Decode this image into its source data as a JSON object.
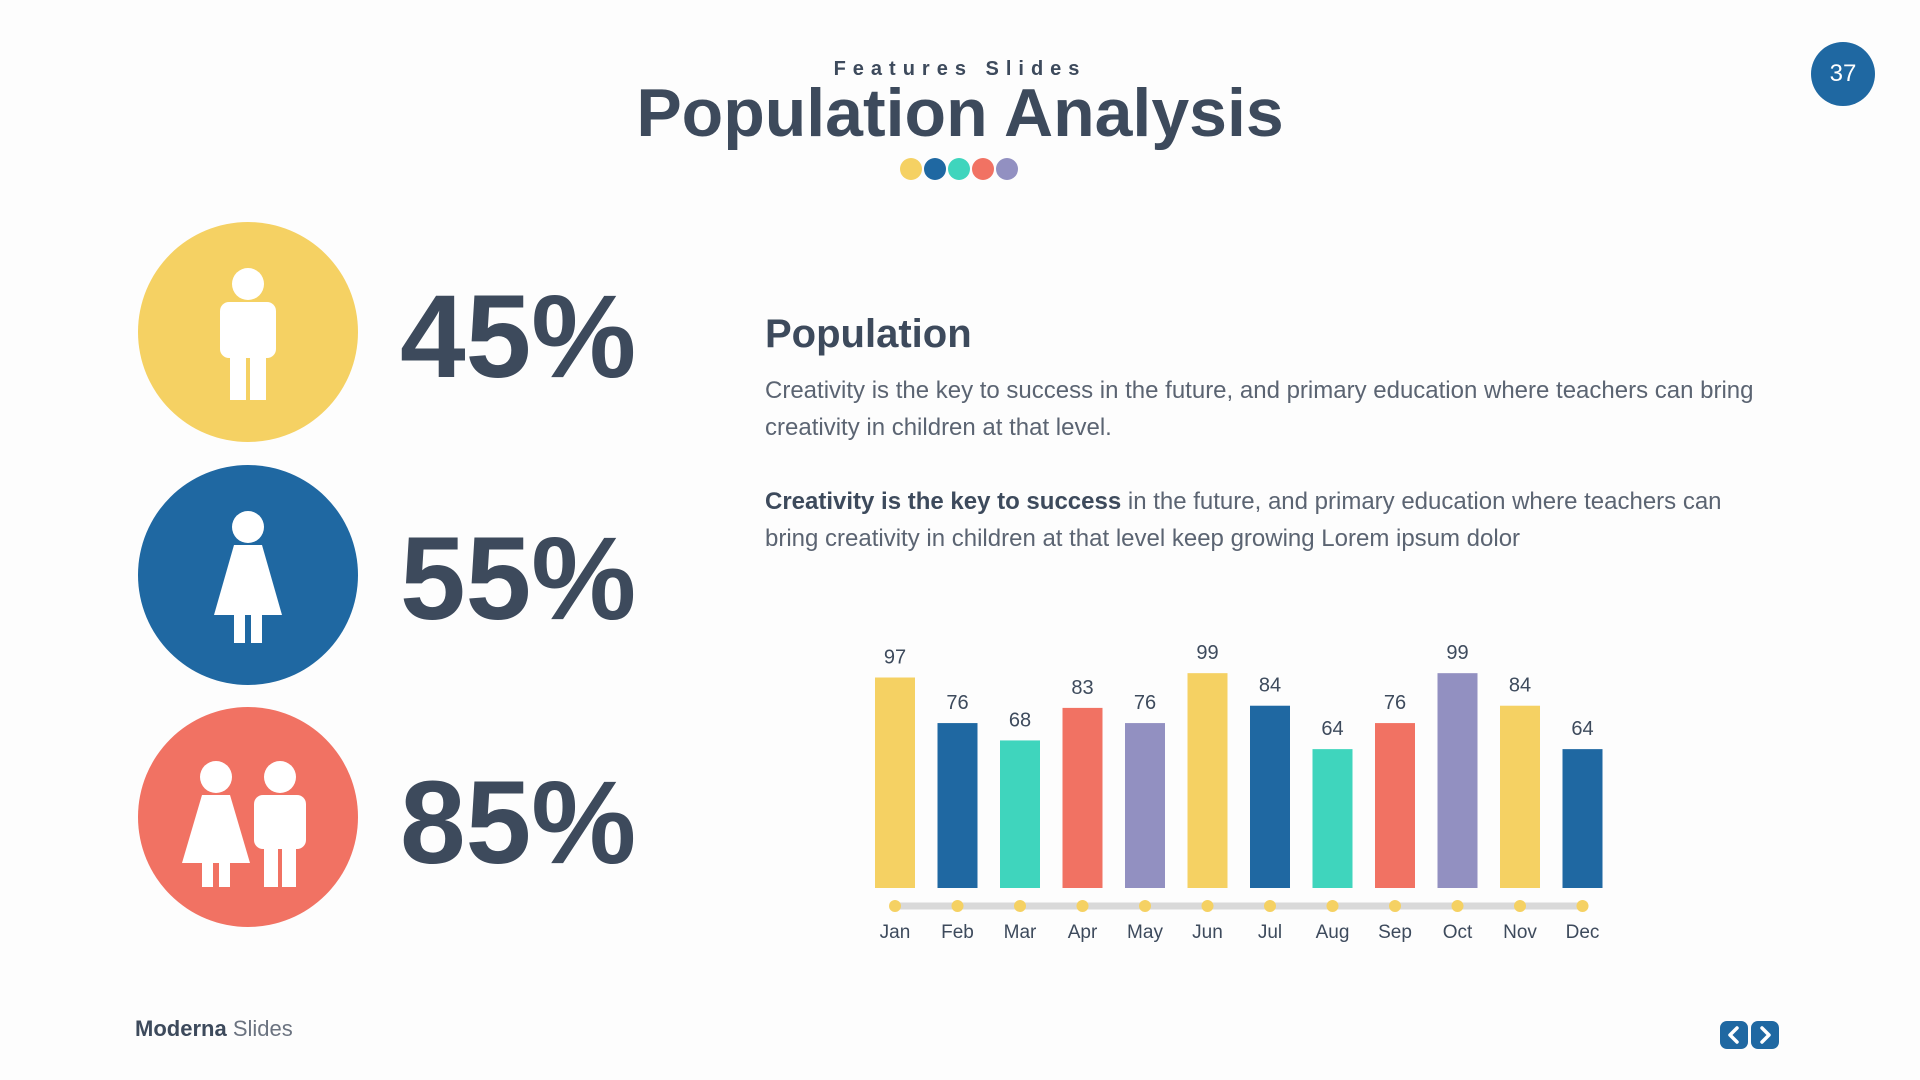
{
  "header": {
    "subtitle": "Features Slides",
    "title": "Population Analysis",
    "page_number": "37",
    "dot_colors": [
      "#f5d163",
      "#1f68a2",
      "#3fd5bd",
      "#f17263",
      "#9290c1"
    ]
  },
  "stats": [
    {
      "value": "45%",
      "color": "#f5d163",
      "icon": "man-icon"
    },
    {
      "value": "55%",
      "color": "#1f68a2",
      "icon": "woman-icon"
    },
    {
      "value": "85%",
      "color": "#f17263",
      "icon": "couple-icon"
    }
  ],
  "content": {
    "heading": "Population",
    "para1": "Creativity is the key to success in the future, and primary education where teachers can bring creativity in children at that level.",
    "para2_bold": "Creativity is the key to success",
    "para2_rest": " in the future, and primary education where teachers can bring creativity in children at that level keep growing Lorem ipsum dolor"
  },
  "chart_data": {
    "type": "bar",
    "categories": [
      "Jan",
      "Feb",
      "Mar",
      "Apr",
      "May",
      "Jun",
      "Jul",
      "Aug",
      "Sep",
      "Oct",
      "Nov",
      "Dec"
    ],
    "values": [
      97,
      76,
      68,
      83,
      76,
      99,
      84,
      64,
      76,
      99,
      84,
      64
    ],
    "colors": [
      "#f5d163",
      "#1f68a2",
      "#3fd5bd",
      "#f17263",
      "#9290c1",
      "#f5d163",
      "#1f68a2",
      "#3fd5bd",
      "#f17263",
      "#9290c1",
      "#f5d163",
      "#1f68a2"
    ],
    "title": "",
    "xlabel": "",
    "ylabel": "",
    "data_labels": true,
    "grid": false
  },
  "footer": {
    "brand_bold": "Moderna",
    "brand_light": "Slides"
  },
  "nav": {
    "prev_icon": "chevron-left-icon",
    "next_icon": "chevron-right-icon",
    "color": "#1f68a2"
  }
}
